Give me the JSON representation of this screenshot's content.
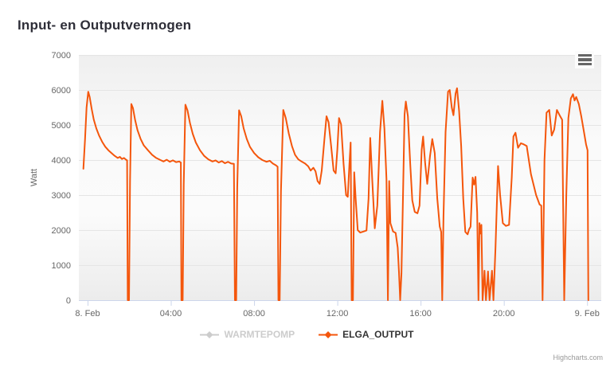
{
  "chart": {
    "title": "Input- en Outputvermogen",
    "credits": "Highcharts.com",
    "export_menu_icon": "hamburger-icon"
  },
  "legend": {
    "items": [
      {
        "label": "WARMTEPOMP",
        "color": "#cccccc",
        "text_color": "#cccccc",
        "enabled": false
      },
      {
        "label": "ELGA_OUTPUT",
        "color": "#f4560c",
        "text_color": "#333333",
        "enabled": true
      }
    ]
  },
  "colors": {
    "series_orange": "#f4560c",
    "grid": "#e5e5e5",
    "axis_line": "#ccd6eb",
    "axis_label": "#666666",
    "title": "#2e2e38",
    "credits": "#999999",
    "menu_icon": "#666666",
    "legend_disabled": "#cccccc",
    "legend_active": "#333333"
  },
  "chart_data": {
    "type": "line",
    "title": "Input- en Outputvermogen",
    "xlabel": "",
    "ylabel": "Watt",
    "ylim": [
      0,
      7000
    ],
    "ytick_step": 1000,
    "x_unit": "hours since 8 Feb 00:00",
    "xlim_hours": [
      -0.42,
      24.68
    ],
    "grid": "horizontal-only",
    "legend_position": "bottom-center",
    "xticks": [
      {
        "t": 0,
        "label": "8. Feb"
      },
      {
        "t": 4,
        "label": "04:00"
      },
      {
        "t": 8,
        "label": "08:00"
      },
      {
        "t": 12,
        "label": "12:00"
      },
      {
        "t": 16,
        "label": "16:00"
      },
      {
        "t": 20,
        "label": "20:00"
      },
      {
        "t": 24,
        "label": "9. Feb"
      }
    ],
    "series": [
      {
        "name": "WARMTEPOMP",
        "color": "#cccccc",
        "visible": false,
        "points": []
      },
      {
        "name": "ELGA_OUTPUT",
        "color": "#f4560c",
        "visible": true,
        "marker": "diamond",
        "points": [
          [
            -0.2,
            3750
          ],
          [
            -0.12,
            4600
          ],
          [
            -0.05,
            5500
          ],
          [
            0.03,
            5950
          ],
          [
            0.1,
            5800
          ],
          [
            0.2,
            5450
          ],
          [
            0.3,
            5150
          ],
          [
            0.42,
            4900
          ],
          [
            0.55,
            4700
          ],
          [
            0.7,
            4520
          ],
          [
            0.85,
            4380
          ],
          [
            1.0,
            4280
          ],
          [
            1.15,
            4200
          ],
          [
            1.3,
            4120
          ],
          [
            1.45,
            4060
          ],
          [
            1.55,
            4090
          ],
          [
            1.65,
            4030
          ],
          [
            1.75,
            4060
          ],
          [
            1.85,
            4010
          ],
          [
            1.9,
            3990
          ],
          [
            1.93,
            0
          ],
          [
            1.99,
            0
          ],
          [
            2.04,
            3400
          ],
          [
            2.1,
            5600
          ],
          [
            2.18,
            5480
          ],
          [
            2.28,
            5150
          ],
          [
            2.4,
            4850
          ],
          [
            2.55,
            4600
          ],
          [
            2.7,
            4420
          ],
          [
            2.9,
            4280
          ],
          [
            3.1,
            4150
          ],
          [
            3.3,
            4060
          ],
          [
            3.5,
            4000
          ],
          [
            3.65,
            3960
          ],
          [
            3.8,
            4010
          ],
          [
            3.95,
            3950
          ],
          [
            4.1,
            3990
          ],
          [
            4.25,
            3940
          ],
          [
            4.4,
            3960
          ],
          [
            4.48,
            3930
          ],
          [
            4.51,
            0
          ],
          [
            4.57,
            0
          ],
          [
            4.62,
            3300
          ],
          [
            4.7,
            5580
          ],
          [
            4.8,
            5420
          ],
          [
            4.92,
            5050
          ],
          [
            5.05,
            4750
          ],
          [
            5.2,
            4500
          ],
          [
            5.4,
            4280
          ],
          [
            5.6,
            4120
          ],
          [
            5.8,
            4020
          ],
          [
            6.0,
            3960
          ],
          [
            6.15,
            3990
          ],
          [
            6.3,
            3930
          ],
          [
            6.45,
            3970
          ],
          [
            6.6,
            3910
          ],
          [
            6.75,
            3950
          ],
          [
            6.9,
            3900
          ],
          [
            7.03,
            3890
          ],
          [
            7.08,
            0
          ],
          [
            7.14,
            0
          ],
          [
            7.19,
            3200
          ],
          [
            7.28,
            5420
          ],
          [
            7.38,
            5250
          ],
          [
            7.5,
            4900
          ],
          [
            7.65,
            4600
          ],
          [
            7.8,
            4380
          ],
          [
            8.0,
            4200
          ],
          [
            8.2,
            4080
          ],
          [
            8.4,
            4000
          ],
          [
            8.6,
            3950
          ],
          [
            8.75,
            3980
          ],
          [
            8.9,
            3900
          ],
          [
            9.05,
            3850
          ],
          [
            9.13,
            3810
          ],
          [
            9.17,
            0
          ],
          [
            9.23,
            0
          ],
          [
            9.29,
            3100
          ],
          [
            9.4,
            5430
          ],
          [
            9.52,
            5200
          ],
          [
            9.67,
            4750
          ],
          [
            9.82,
            4400
          ],
          [
            9.97,
            4150
          ],
          [
            10.12,
            4020
          ],
          [
            10.28,
            3960
          ],
          [
            10.45,
            3900
          ],
          [
            10.6,
            3820
          ],
          [
            10.72,
            3700
          ],
          [
            10.85,
            3780
          ],
          [
            10.95,
            3680
          ],
          [
            11.05,
            3400
          ],
          [
            11.15,
            3320
          ],
          [
            11.25,
            3700
          ],
          [
            11.38,
            4600
          ],
          [
            11.48,
            5250
          ],
          [
            11.58,
            5080
          ],
          [
            11.7,
            4400
          ],
          [
            11.82,
            3700
          ],
          [
            11.92,
            3620
          ],
          [
            12.0,
            4300
          ],
          [
            12.08,
            5200
          ],
          [
            12.18,
            5020
          ],
          [
            12.3,
            3900
          ],
          [
            12.42,
            3000
          ],
          [
            12.5,
            2950
          ],
          [
            12.58,
            3900
          ],
          [
            12.64,
            4500
          ],
          [
            12.69,
            0
          ],
          [
            12.75,
            0
          ],
          [
            12.81,
            3650
          ],
          [
            12.88,
            2900
          ],
          [
            12.98,
            2000
          ],
          [
            13.1,
            1930
          ],
          [
            13.25,
            1960
          ],
          [
            13.4,
            1990
          ],
          [
            13.5,
            2900
          ],
          [
            13.58,
            4630
          ],
          [
            13.68,
            3400
          ],
          [
            13.8,
            2050
          ],
          [
            13.92,
            2700
          ],
          [
            14.05,
            4800
          ],
          [
            14.16,
            5690
          ],
          [
            14.26,
            4900
          ],
          [
            14.36,
            3450
          ],
          [
            14.43,
            0
          ],
          [
            14.49,
            3400
          ],
          [
            14.55,
            2200
          ],
          [
            14.68,
            1960
          ],
          [
            14.8,
            1920
          ],
          [
            14.9,
            1500
          ],
          [
            14.96,
            800
          ],
          [
            15.02,
            0
          ],
          [
            15.08,
            760
          ],
          [
            15.15,
            2800
          ],
          [
            15.23,
            5300
          ],
          [
            15.29,
            5670
          ],
          [
            15.39,
            5250
          ],
          [
            15.5,
            3900
          ],
          [
            15.6,
            2850
          ],
          [
            15.72,
            2520
          ],
          [
            15.85,
            2480
          ],
          [
            15.95,
            2700
          ],
          [
            16.05,
            4300
          ],
          [
            16.12,
            4670
          ],
          [
            16.22,
            3900
          ],
          [
            16.32,
            3320
          ],
          [
            16.45,
            4100
          ],
          [
            16.56,
            4600
          ],
          [
            16.68,
            4200
          ],
          [
            16.8,
            2900
          ],
          [
            16.92,
            2100
          ],
          [
            16.99,
            1950
          ],
          [
            17.04,
            0
          ],
          [
            17.1,
            2400
          ],
          [
            17.2,
            4800
          ],
          [
            17.32,
            5950
          ],
          [
            17.4,
            6000
          ],
          [
            17.5,
            5500
          ],
          [
            17.58,
            5280
          ],
          [
            17.68,
            5900
          ],
          [
            17.75,
            6050
          ],
          [
            17.85,
            5400
          ],
          [
            17.95,
            4400
          ],
          [
            18.05,
            2900
          ],
          [
            18.15,
            1950
          ],
          [
            18.26,
            1880
          ],
          [
            18.33,
            2020
          ],
          [
            18.4,
            2100
          ],
          [
            18.5,
            3500
          ],
          [
            18.57,
            3300
          ],
          [
            18.64,
            3520
          ],
          [
            18.72,
            2500
          ],
          [
            18.78,
            0
          ],
          [
            18.83,
            2200
          ],
          [
            18.87,
            1900
          ],
          [
            18.92,
            2150
          ],
          [
            18.98,
            0
          ],
          [
            19.07,
            840
          ],
          [
            19.14,
            0
          ],
          [
            19.24,
            820
          ],
          [
            19.31,
            0
          ],
          [
            19.43,
            840
          ],
          [
            19.5,
            0
          ],
          [
            19.6,
            1500
          ],
          [
            19.72,
            3830
          ],
          [
            19.82,
            3000
          ],
          [
            19.95,
            2200
          ],
          [
            20.1,
            2120
          ],
          [
            20.25,
            2150
          ],
          [
            20.38,
            3500
          ],
          [
            20.46,
            4670
          ],
          [
            20.56,
            4780
          ],
          [
            20.68,
            4350
          ],
          [
            20.82,
            4480
          ],
          [
            20.95,
            4450
          ],
          [
            21.1,
            4400
          ],
          [
            21.3,
            3600
          ],
          [
            21.55,
            3000
          ],
          [
            21.72,
            2730
          ],
          [
            21.8,
            2700
          ],
          [
            21.86,
            0
          ],
          [
            21.95,
            4000
          ],
          [
            22.05,
            5350
          ],
          [
            22.18,
            5430
          ],
          [
            22.3,
            4700
          ],
          [
            22.42,
            4870
          ],
          [
            22.55,
            5430
          ],
          [
            22.68,
            5280
          ],
          [
            22.8,
            5150
          ],
          [
            22.9,
            0
          ],
          [
            23.0,
            3000
          ],
          [
            23.1,
            5200
          ],
          [
            23.22,
            5760
          ],
          [
            23.32,
            5880
          ],
          [
            23.4,
            5700
          ],
          [
            23.48,
            5800
          ],
          [
            23.6,
            5600
          ],
          [
            23.72,
            5250
          ],
          [
            23.85,
            4800
          ],
          [
            23.95,
            4450
          ],
          [
            24.02,
            4280
          ],
          [
            24.06,
            0
          ]
        ]
      }
    ]
  }
}
